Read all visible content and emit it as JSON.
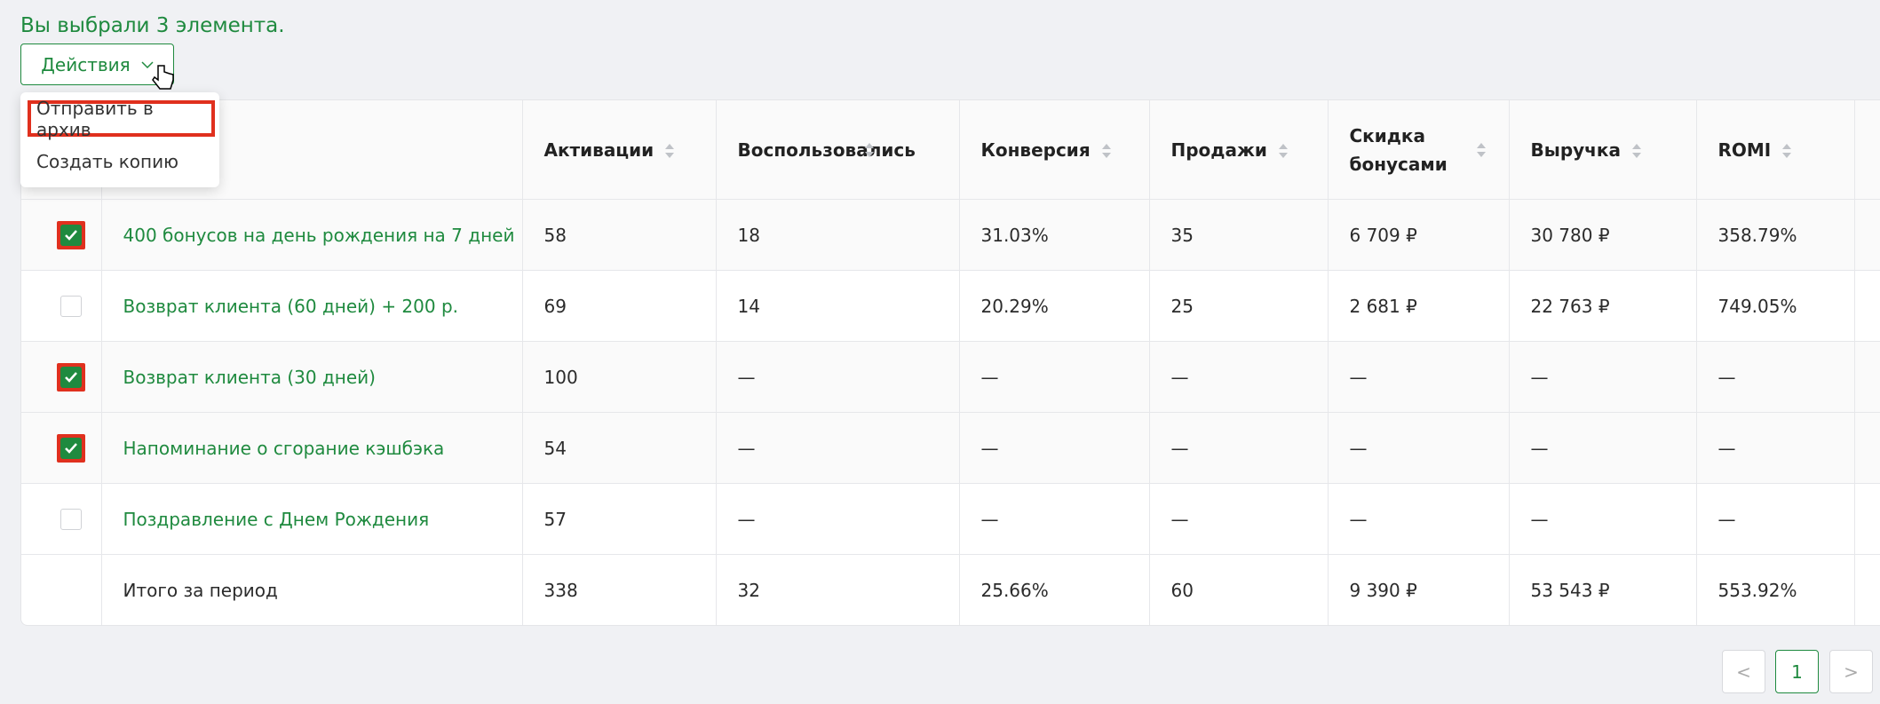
{
  "selection_text": "Вы выбрали 3 элемента.",
  "actions_button": "Действия",
  "menu": {
    "items": [
      "Отправить в архив",
      "Создать копию"
    ]
  },
  "table": {
    "headers": [
      "Активации",
      "Воспользовались",
      "Конверсия",
      "Продажи",
      "Скидка бонусами",
      "Выручка",
      "ROMI"
    ],
    "rows": [
      {
        "checked": true,
        "name": "400 бонусов на день рождения на 7 дней",
        "values": [
          "58",
          "18",
          "31.03%",
          "35",
          "6 709 ₽",
          "30 780 ₽",
          "358.79%"
        ]
      },
      {
        "checked": false,
        "name": "Возврат клиента (60 дней) + 200 р.",
        "values": [
          "69",
          "14",
          "20.29%",
          "25",
          "2 681 ₽",
          "22 763 ₽",
          "749.05%"
        ]
      },
      {
        "checked": true,
        "name": "Возврат клиента (30 дней)",
        "values": [
          "100",
          "—",
          "—",
          "—",
          "—",
          "—",
          "—"
        ]
      },
      {
        "checked": true,
        "name": "Напоминание о сгорание кэшбэка",
        "values": [
          "54",
          "—",
          "—",
          "—",
          "—",
          "—",
          "—"
        ]
      },
      {
        "checked": false,
        "name": "Поздравление с Днем Рождения",
        "values": [
          "57",
          "—",
          "—",
          "—",
          "—",
          "—",
          "—"
        ]
      }
    ],
    "total": {
      "label": "Итого за период",
      "values": [
        "338",
        "32",
        "25.66%",
        "60",
        "9 390 ₽",
        "53 543 ₽",
        "553.92%"
      ]
    }
  },
  "pagination": {
    "current": "1"
  }
}
